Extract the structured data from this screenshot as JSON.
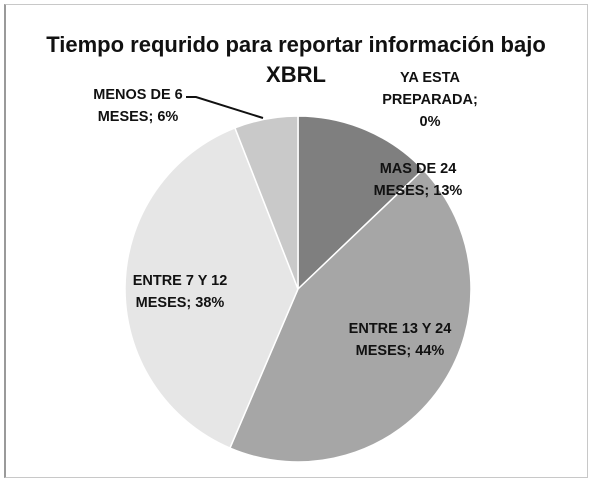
{
  "chart_data": {
    "type": "pie",
    "title": "Tiempo requrido para reportar información bajo XBRL",
    "values": [
      0,
      13,
      44,
      38,
      6
    ],
    "value_labels": [
      "YA ESTA PREPARADA; 0%",
      "MAS DE 24 MESES; 13%",
      "ENTRE 13 Y 24 MESES; 44%",
      "ENTRE 7 Y 12 MESES; 38%",
      "MENOS DE 6 MESES; 6%"
    ],
    "colors": [
      "#595959",
      "#7f7f7f",
      "#a6a6a6",
      "#e6e6e6",
      "#c9c9c9"
    ]
  }
}
